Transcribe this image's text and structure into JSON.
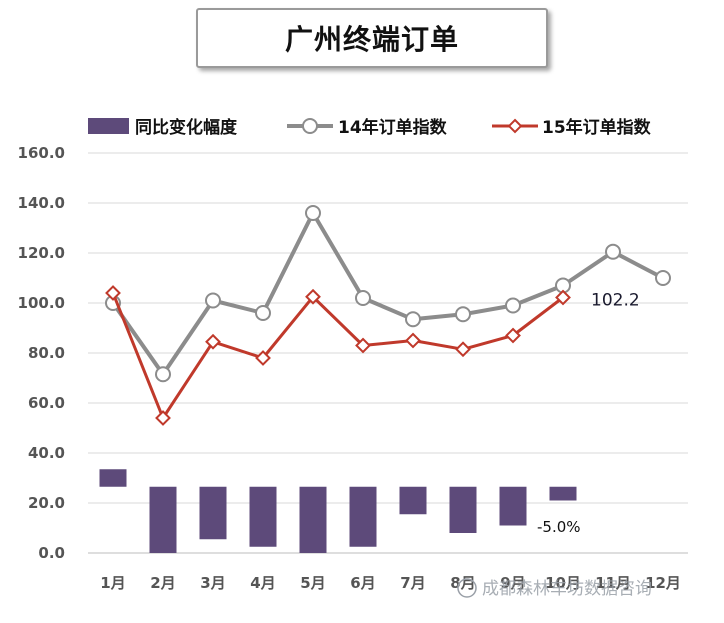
{
  "title": "广州终端订单",
  "watermark": "成都森林车坊数据咨询",
  "chart_data": {
    "type": "bar+line",
    "categories": [
      "1月",
      "2月",
      "3月",
      "4月",
      "5月",
      "6月",
      "7月",
      "8月",
      "9月",
      "10月",
      "11月",
      "12月"
    ],
    "ylim": [
      0,
      160
    ],
    "yticks": [
      "0.0",
      "20.0",
      "40.0",
      "60.0",
      "80.0",
      "100.0",
      "120.0",
      "140.0",
      "160.0"
    ],
    "grid": true,
    "legend_position": "top",
    "series": [
      {
        "name": "同比变化幅度",
        "kind": "bar",
        "color": "#5d4a7a",
        "baseline": 26.5,
        "values": [
          33.5,
          0.0,
          5.5,
          2.5,
          0.0,
          2.5,
          15.5,
          8.0,
          11.0,
          21.0,
          null,
          null
        ]
      },
      {
        "name": "14年订单指数",
        "kind": "line",
        "color": "#8c8c8c",
        "marker": "circle",
        "values": [
          100.0,
          71.5,
          101.0,
          96.0,
          136.0,
          102.0,
          93.5,
          95.5,
          99.0,
          107.0,
          120.5,
          110.0
        ]
      },
      {
        "name": "15年订单指数",
        "kind": "line",
        "color": "#c0392b",
        "marker": "diamond",
        "values": [
          104.0,
          54.0,
          84.5,
          78.0,
          102.5,
          83.0,
          85.0,
          81.5,
          87.0,
          102.2,
          null,
          null
        ]
      }
    ],
    "annotations": [
      {
        "text": "102.2",
        "x": "10月",
        "series": "15年订单指数"
      },
      {
        "text": "-5.0%",
        "x": "10月",
        "series": "同比变化幅度"
      }
    ]
  }
}
